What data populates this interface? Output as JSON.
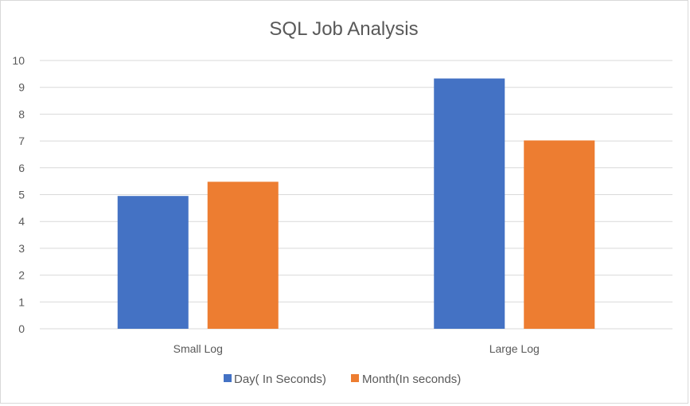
{
  "chart_data": {
    "type": "bar",
    "title": "SQL Job Analysis",
    "xlabel": "",
    "ylabel": "",
    "categories": [
      "Small Log",
      "Large Log"
    ],
    "series": [
      {
        "name": "Day( In Seconds)",
        "values": [
          4.95,
          9.33
        ],
        "color": "#4472c4"
      },
      {
        "name": "Month(In seconds)",
        "values": [
          5.48,
          7.02
        ],
        "color": "#ed7d31"
      }
    ],
    "ylim": [
      0,
      10
    ],
    "yticks": [
      0,
      1,
      2,
      3,
      4,
      5,
      6,
      7,
      8,
      9,
      10
    ],
    "grid": true,
    "legend_position": "bottom",
    "colors": {
      "gridline": "#d9d9d9",
      "text": "#595959",
      "border": "#d9d9d9"
    }
  }
}
